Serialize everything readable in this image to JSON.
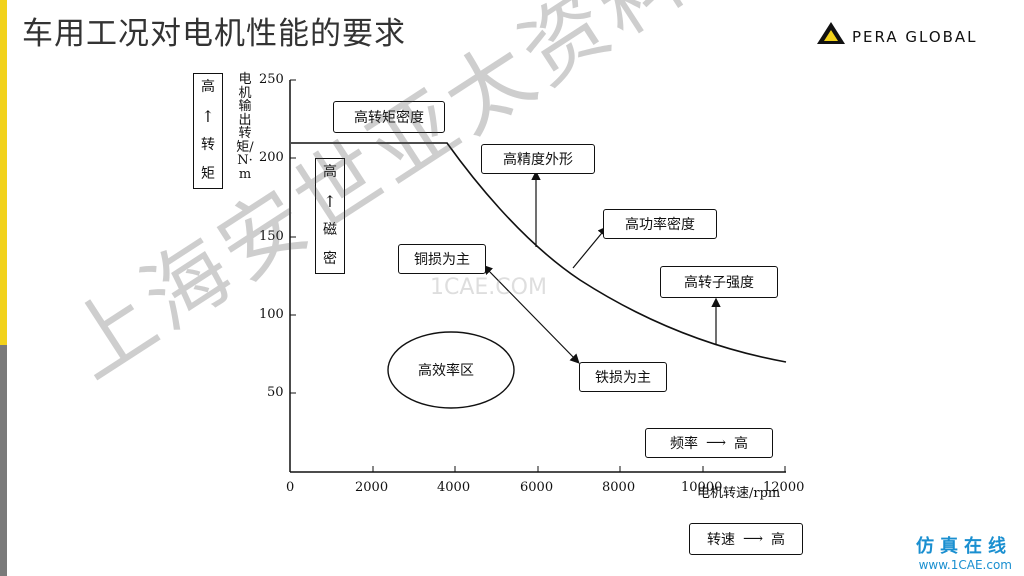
{
  "slide": {
    "title": "车用工况对电机性能的要求",
    "logo_text": "PERA GLOBAL",
    "colors": {
      "accent": "#f2d21b",
      "side_grey": "#7a7a7a",
      "brand_blue": "#1a8fd0"
    }
  },
  "figure": {
    "y_axis_label": "电机输出转矩/N·m",
    "x_axis_label_line1": "电机转速/",
    "x_axis_label_line2": "rpm",
    "y_ticks": [
      "250",
      "200",
      "150",
      "100",
      "50"
    ],
    "x_ticks": [
      "0",
      "2000",
      "4000",
      "6000",
      "8000",
      "10000",
      "12000"
    ],
    "torque_box": {
      "top": "高",
      "arrow": "↑",
      "bottom1": "转",
      "bottom2": "矩"
    },
    "flux_box": {
      "top": "高",
      "arrow": "↑",
      "bottom1": "磁",
      "bottom2": "密"
    },
    "labels": {
      "high_torque_density": "高转矩密度",
      "high_precision": "高精度外形",
      "high_power_density": "高功率密度",
      "high_rotor_strength": "高转子强度",
      "copper_loss": "铜损为主",
      "iron_loss": "铁损为主",
      "high_efficiency_zone": "高效率区"
    },
    "freq_box": {
      "label": "频率",
      "arrow": "⟶",
      "value": "高"
    },
    "speed_box": {
      "label": "转速",
      "arrow": "⟶",
      "value": "高"
    }
  },
  "watermark": "上海安世亚太资料分享",
  "faint_mark": "1CAE.COM",
  "bottom_mark": {
    "cn": "仿真在线",
    "url": "www.1CAE.com"
  }
}
